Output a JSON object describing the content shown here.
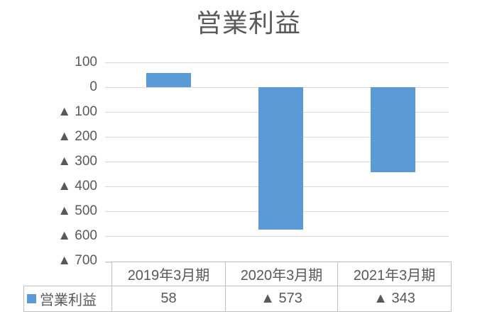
{
  "chart_data": {
    "type": "bar",
    "title": "営業利益",
    "categories": [
      "2019年3月期",
      "2020年3月期",
      "2021年3月期"
    ],
    "series": [
      {
        "name": "営業利益",
        "values": [
          58,
          -573,
          -343
        ]
      }
    ],
    "value_labels": [
      "58",
      "▲ 573",
      "▲ 343"
    ],
    "ylim": [
      -700,
      100
    ],
    "ytick_step": 100,
    "ytick_labels": [
      "100",
      "0",
      "▲ 100",
      "▲ 200",
      "▲ 300",
      "▲ 400",
      "▲ 500",
      "▲ 600",
      "▲ 700"
    ],
    "grid": true,
    "legend": {
      "label": "営業利益",
      "position": "data-table-row-header"
    },
    "negative_notation": "▲",
    "colors": {
      "bar": "#5B9BD5",
      "gridline": "#D9D9D9",
      "text": "#595959",
      "table_border": "#BFBFBF",
      "background": "#FFFFFF"
    }
  }
}
